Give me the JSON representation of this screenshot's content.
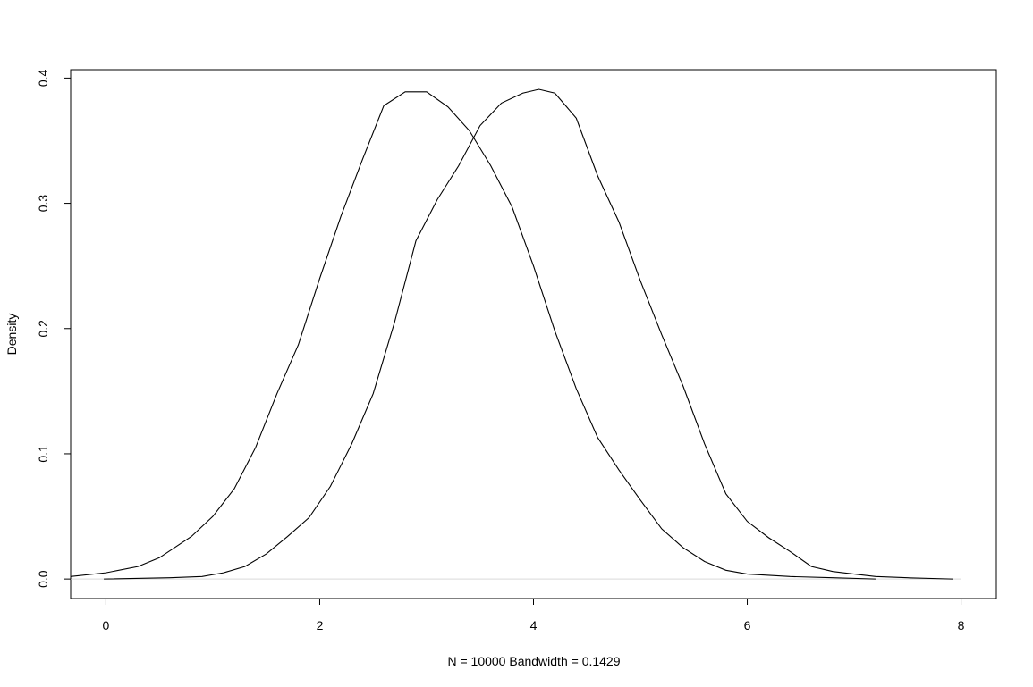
{
  "chart_data": {
    "type": "line",
    "title": "",
    "xlabel": "N = 10000   Bandwidth = 0.1429",
    "ylabel": "Density",
    "xlim": [
      -0.33,
      8.33
    ],
    "ylim": [
      -0.0156,
      0.4067
    ],
    "x_ticks": [
      0,
      2,
      4,
      6,
      8
    ],
    "y_ticks": [
      0.0,
      0.1,
      0.2,
      0.3,
      0.4
    ],
    "x_tick_labels": [
      "0",
      "2",
      "4",
      "6",
      "8"
    ],
    "y_tick_labels": [
      "0.0",
      "0.1",
      "0.2",
      "0.3",
      "0.4"
    ],
    "grid": false,
    "series": [
      {
        "x": [
          -0.33,
          0.0,
          0.3,
          0.5,
          0.8,
          1.0,
          1.2,
          1.4,
          1.6,
          1.8,
          2.0,
          2.2,
          2.4,
          2.6,
          2.8,
          3.0,
          3.2,
          3.4,
          3.6,
          3.8,
          4.0,
          4.2,
          4.4,
          4.6,
          4.8,
          5.0,
          5.2,
          5.4,
          5.6,
          5.8,
          6.0,
          6.4,
          6.8,
          7.2
        ],
        "values": [
          0.002,
          0.005,
          0.01,
          0.017,
          0.034,
          0.05,
          0.072,
          0.105,
          0.148,
          0.187,
          0.24,
          0.29,
          0.335,
          0.378,
          0.389,
          0.389,
          0.377,
          0.358,
          0.33,
          0.297,
          0.25,
          0.198,
          0.152,
          0.113,
          0.087,
          0.063,
          0.04,
          0.025,
          0.014,
          0.007,
          0.004,
          0.002,
          0.001,
          0.0
        ]
      },
      {
        "x": [
          -0.02,
          0.6,
          0.9,
          1.1,
          1.3,
          1.5,
          1.7,
          1.9,
          2.1,
          2.3,
          2.5,
          2.7,
          2.9,
          3.1,
          3.3,
          3.5,
          3.7,
          3.9,
          4.05,
          4.2,
          4.4,
          4.6,
          4.8,
          5.0,
          5.2,
          5.4,
          5.6,
          5.8,
          6.0,
          6.2,
          6.4,
          6.6,
          6.8,
          7.0,
          7.2,
          7.5,
          7.92
        ],
        "values": [
          0.0,
          0.001,
          0.002,
          0.005,
          0.01,
          0.02,
          0.034,
          0.049,
          0.074,
          0.108,
          0.148,
          0.205,
          0.27,
          0.303,
          0.33,
          0.362,
          0.38,
          0.388,
          0.391,
          0.388,
          0.368,
          0.322,
          0.285,
          0.238,
          0.195,
          0.154,
          0.108,
          0.068,
          0.046,
          0.033,
          0.022,
          0.01,
          0.006,
          0.004,
          0.002,
          0.001,
          0.0
        ]
      }
    ]
  }
}
